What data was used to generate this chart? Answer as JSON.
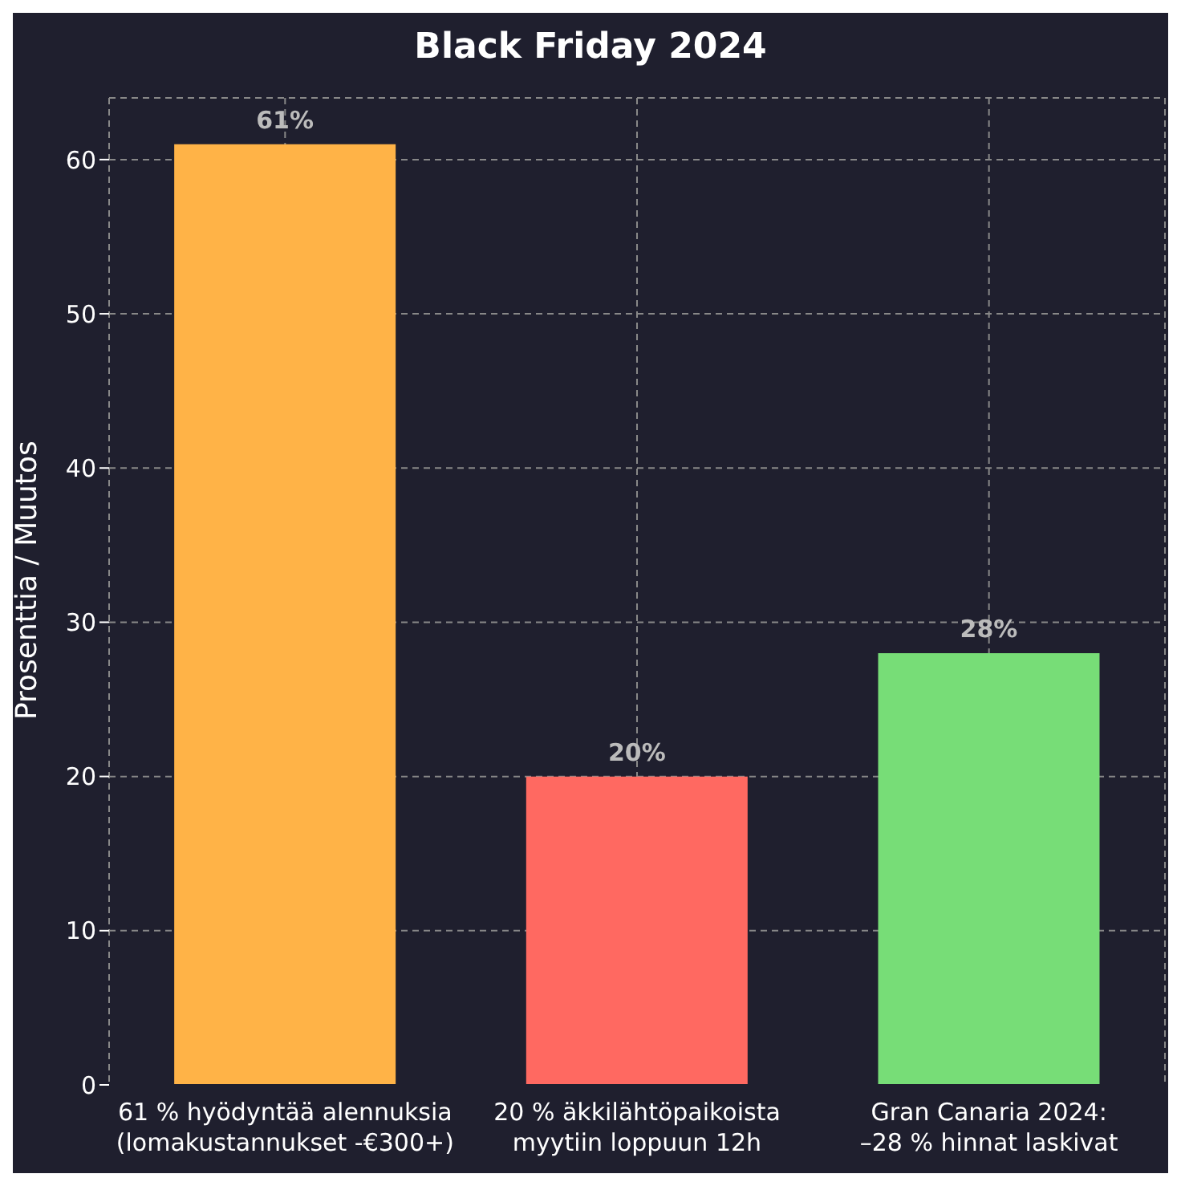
{
  "chart_data": {
    "type": "bar",
    "title": "Black Friday 2024",
    "ylabel": "Prosenttia / Muutos",
    "categories": [
      "61 % hyödyntää alennuksia\n(lomakustannukset -€300+)",
      "20 % äkkilähtöpaikoista\nmyytiin loppuun 12h",
      "Gran Canaria 2024:\n–28 % hinnat laskivat"
    ],
    "values": [
      61,
      20,
      28
    ],
    "colors": [
      "#ffb347",
      "#ff6961",
      "#77dd77"
    ],
    "value_labels": [
      "61%",
      "20%",
      "28%"
    ],
    "ylim": [
      0,
      64
    ],
    "yticks": [
      0,
      10,
      20,
      30,
      40,
      50,
      60
    ],
    "grid": true
  }
}
